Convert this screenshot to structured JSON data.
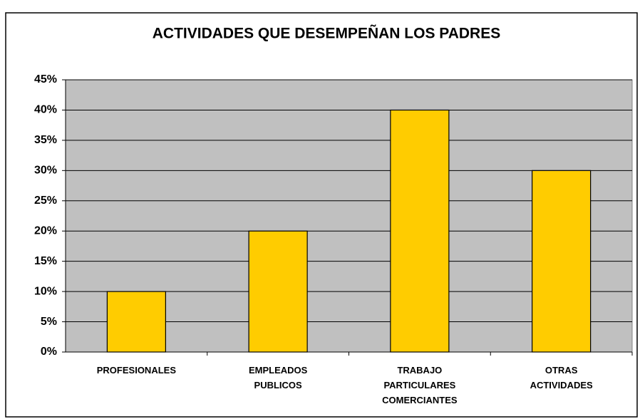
{
  "chart_data": {
    "type": "bar",
    "title": "ACTIVIDADES QUE DESEMPEÑAN LOS PADRES",
    "categories": [
      "PROFESIONALES",
      "EMPLEADOS PUBLICOS",
      "TRABAJO PARTICULARES COMERCIANTES",
      "OTRAS ACTIVIDADES"
    ],
    "values": [
      10,
      20,
      40,
      30
    ],
    "color": "#ffcc00",
    "ylim": [
      0,
      45
    ],
    "yticks": [
      {
        "value": 0,
        "label": "0%"
      },
      {
        "value": 5,
        "label": "5%"
      },
      {
        "value": 10,
        "label": "10%"
      },
      {
        "value": 15,
        "label": "15%"
      },
      {
        "value": 20,
        "label": "20%"
      },
      {
        "value": 25,
        "label": "25%"
      },
      {
        "value": 30,
        "label": "30%"
      },
      {
        "value": 35,
        "label": "35%"
      },
      {
        "value": 40,
        "label": "40%"
      },
      {
        "value": 45,
        "label": "45%"
      }
    ],
    "grid": true
  }
}
